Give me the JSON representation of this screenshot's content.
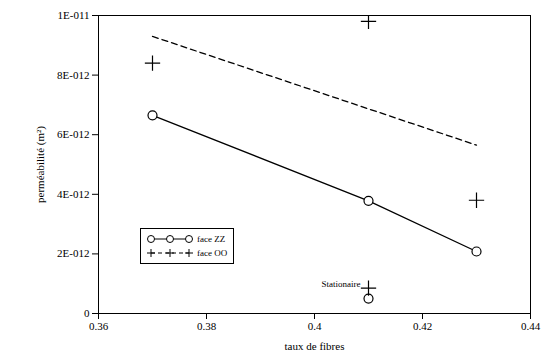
{
  "chart_data": {
    "type": "line",
    "xlabel": "taux de fibres",
    "ylabel": "perméabilité (m²)",
    "xlim": [
      0.36,
      0.44
    ],
    "xticks": [
      0.36,
      0.38,
      0.4,
      0.42,
      0.44
    ],
    "ylim": [
      0,
      1e-11
    ],
    "yticks": [
      0,
      {
        "value": 2e-12,
        "label": "2E-012"
      },
      {
        "value": 4e-12,
        "label": "4E-012"
      },
      {
        "value": 6e-12,
        "label": "6E-012"
      },
      {
        "value": 8e-12,
        "label": "8E-012"
      },
      {
        "value": 1e-11,
        "label": "1E-011"
      }
    ],
    "grid": false,
    "legend": "left",
    "annotations": [
      "Stationaire"
    ],
    "series": [
      {
        "name": "face ZZ",
        "color": "#000000",
        "marker": "circle",
        "line_style": "solid",
        "x": [
          0.37,
          0.41,
          0.43
        ],
        "values": [
          6.65e-12,
          3.78e-12,
          2.08e-12
        ],
        "stationary": {
          "x": 0.41,
          "value": 5e-13
        }
      },
      {
        "name": "face OO",
        "color": "#000000",
        "marker": "plus",
        "line_style": "dashed",
        "x": [
          0.37,
          0.41,
          0.43
        ],
        "values": [
          8.4e-12,
          9.8e-12,
          3.8e-12
        ],
        "trend": {
          "x": [
            0.37,
            0.43
          ],
          "values": [
            9.3e-12,
            5.65e-12
          ]
        },
        "stationary": {
          "x": 0.41,
          "value": 8.5e-13
        }
      }
    ]
  }
}
